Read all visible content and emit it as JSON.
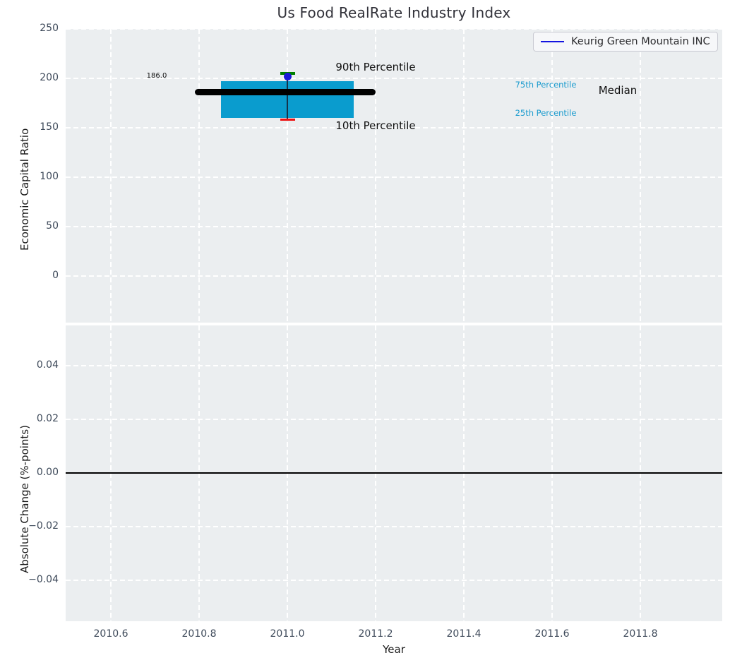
{
  "title": "Us Food RealRate Industry Index",
  "legend": {
    "label": "Keurig Green Mountain INC",
    "line_color": "#1414e0"
  },
  "x_axis": {
    "label": "Year",
    "ticks": [
      "2010.6",
      "2010.8",
      "2011.0",
      "2011.2",
      "2011.4",
      "2011.6",
      "2011.8"
    ],
    "tick_values": [
      2010.6,
      2010.8,
      2011.0,
      2011.2,
      2011.4,
      2011.6,
      2011.8
    ],
    "xlim": [
      2010.5,
      2011.99
    ]
  },
  "chart_data": [
    {
      "type": "box",
      "title": "Us Food RealRate Industry Index",
      "ylabel": "Economic Capital Ratio",
      "ylim": [
        -47,
        250
      ],
      "grid": "dashed-white",
      "yticks": [
        "250",
        "200",
        "150",
        "100",
        "50",
        "0"
      ],
      "ytick_values": [
        250,
        200,
        150,
        100,
        50,
        0
      ],
      "box": {
        "x_center": 2011.0,
        "box_left": 2010.85,
        "box_right": 2011.15,
        "p90": 205,
        "p75": 197,
        "median": 186.0,
        "p25": 160,
        "p10": 158.5,
        "median_line_left": 2010.79,
        "median_line_right": 2011.2
      },
      "series": [
        {
          "name": "Keurig Green Mountain INC",
          "x": [
            2011.0
          ],
          "values": [
            202
          ]
        }
      ],
      "annotations": {
        "median_value_label": "186.0",
        "p90_label": "90th Percentile",
        "p10_label": "10th Percentile",
        "p75_label": "75th Percentile",
        "p25_label": "25th Percentile",
        "median_label": "Median"
      },
      "colors": {
        "box_fill": "#0a9cce",
        "median_line": "#000000",
        "p90_cap": "#008000",
        "p10_cap": "#ee1111",
        "whisker": "#16324a",
        "company_dot": "#1a1ad9",
        "percentile_label_text": "#1a9bce",
        "axes_background": "#ebeef0"
      },
      "legend_position": "upper right"
    },
    {
      "type": "line",
      "ylabel": "Absolute Change (%-points)",
      "ylim": [
        -0.0554,
        0.0552
      ],
      "grid": "dashed-white",
      "yticks": [
        "0.04",
        "0.02",
        "0.00",
        "−0.02",
        "−0.04"
      ],
      "ytick_values": [
        0.04,
        0.02,
        0.0,
        -0.02,
        -0.04
      ],
      "zero_line": 0.0,
      "series": []
    }
  ]
}
